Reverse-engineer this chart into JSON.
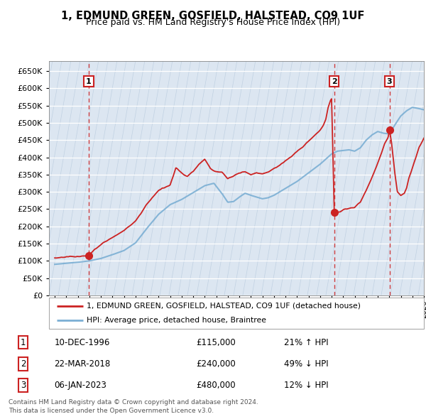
{
  "title": "1, EDMUND GREEN, GOSFIELD, HALSTEAD, CO9 1UF",
  "subtitle": "Price paid vs. HM Land Registry's House Price Index (HPI)",
  "ylim": [
    0,
    680000
  ],
  "yticks": [
    0,
    50000,
    100000,
    150000,
    200000,
    250000,
    300000,
    350000,
    400000,
    450000,
    500000,
    550000,
    600000,
    650000
  ],
  "xlim_start": 1993.5,
  "xlim_end": 2026.0,
  "background_color": "#ffffff",
  "plot_bg_color": "#dce6f1",
  "hatch_color": "#c8d8e8",
  "red_line_color": "#cc2222",
  "blue_line_color": "#7bafd4",
  "transaction_color": "#cc2222",
  "sale_points": [
    {
      "year": 1996.94,
      "price": 115000,
      "label": "1"
    },
    {
      "year": 2018.23,
      "price": 240000,
      "label": "2"
    },
    {
      "year": 2023.02,
      "price": 480000,
      "label": "3"
    }
  ],
  "legend_red_label": "1, EDMUND GREEN, GOSFIELD, HALSTEAD, CO9 1UF (detached house)",
  "legend_blue_label": "HPI: Average price, detached house, Braintree",
  "table_rows": [
    {
      "num": "1",
      "date": "10-DEC-1996",
      "price": "£115,000",
      "hpi": "21% ↑ HPI"
    },
    {
      "num": "2",
      "date": "22-MAR-2018",
      "price": "£240,000",
      "hpi": "49% ↓ HPI"
    },
    {
      "num": "3",
      "date": "06-JAN-2023",
      "price": "£480,000",
      "hpi": "12% ↓ HPI"
    }
  ],
  "footnote": "Contains HM Land Registry data © Crown copyright and database right 2024.\nThis data is licensed under the Open Government Licence v3.0.",
  "title_fontsize": 10.5,
  "subtitle_fontsize": 9.0
}
